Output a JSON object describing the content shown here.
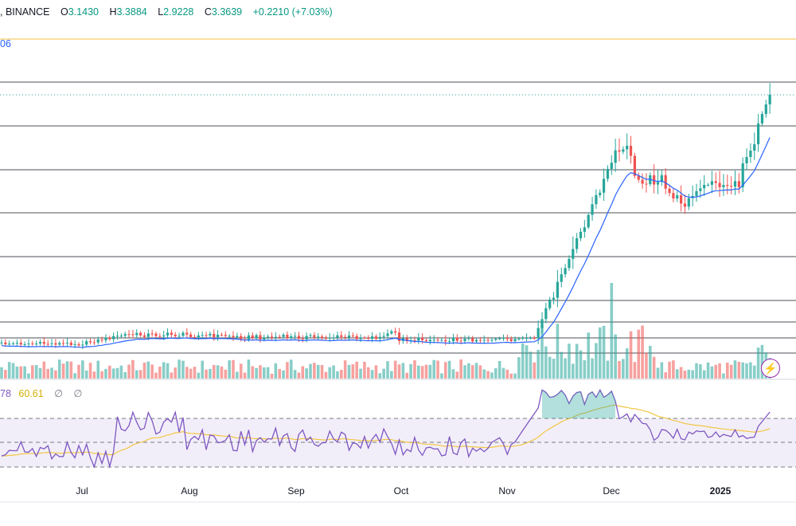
{
  "header": {
    "exchange_text": ", BINANCE",
    "o_key": "O",
    "o_val": "3.1430",
    "h_key": "H",
    "h_val": "3.3884",
    "l_key": "L",
    "l_val": "2.9228",
    "c_key": "C",
    "c_val": "3.3639",
    "change": "+0.2210 (+7.03%)"
  },
  "ma_label": "06",
  "rsi": {
    "value_text": "78",
    "ma_text": "60.61",
    "na1": "∅",
    "na2": "∅"
  },
  "colors": {
    "up": "#26a69a",
    "down": "#ef5350",
    "ma_line": "#2962ff",
    "rsi_line": "#7e57c2",
    "rsi_ma": "#f3c744",
    "hline": "#131722",
    "yellow_line": "#f0c040"
  },
  "chart_data": {
    "type": "candlestick",
    "x_axis_labels": [
      "Jul",
      "Aug",
      "Sep",
      "Oct",
      "Nov",
      "Dec",
      "2025"
    ],
    "rsi_bands": [
      30,
      50,
      70
    ]
  }
}
